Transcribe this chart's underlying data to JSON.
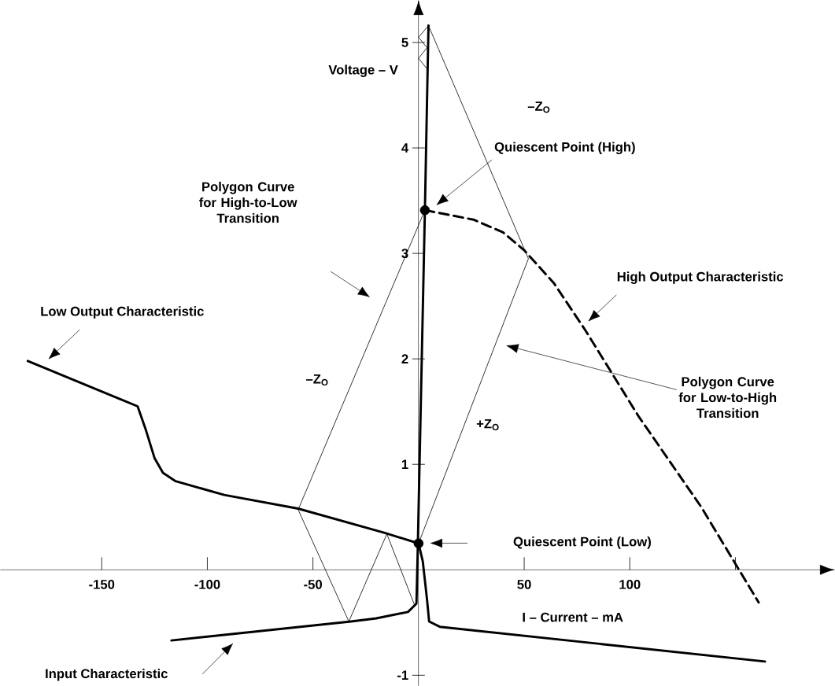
{
  "chart_data": {
    "type": "line",
    "xlabel": "I – Current – mA",
    "ylabel": "Voltage – V",
    "xlim": [
      -198,
      197
    ],
    "ylim": [
      -1.1,
      5.4
    ],
    "xticks": [
      -150,
      -100,
      -50,
      50,
      100,
      {
        "value": 150,
        "label": null
      }
    ],
    "yticks": [
      -1,
      1,
      2,
      3,
      4,
      5
    ],
    "series": [
      {
        "type": "line",
        "color": "#000000",
        "line_style": "solid",
        "x": [
          -185,
          -133,
          -129,
          -125,
          -121,
          -115,
          -92,
          -57,
          -16,
          0,
          2,
          4,
          5,
          10,
          164
        ],
        "values": [
          1.98,
          1.55,
          1.32,
          1.06,
          0.92,
          0.84,
          0.71,
          0.58,
          0.35,
          0.25,
          0.08,
          -0.28,
          -0.49,
          -0.54,
          -0.87
        ]
      },
      {
        "type": "line",
        "color": "#000000",
        "line_style": "solid",
        "x": [
          -117,
          -32,
          -20,
          -5,
          -1,
          -0.4,
          3,
          4.7
        ],
        "values": [
          -0.67,
          -0.49,
          -0.46,
          -0.4,
          -0.32,
          0.18,
          3.41,
          5.16
        ]
      },
      {
        "type": "line",
        "color": "#000000",
        "line_style": "dashed",
        "x": [
          3,
          26,
          40,
          50,
          64,
          79,
          104,
          134,
          161
        ],
        "values": [
          3.41,
          3.32,
          3.2,
          3.03,
          2.72,
          2.27,
          1.46,
          0.59,
          -0.31
        ]
      },
      {
        "type": "line",
        "color": "#000000",
        "line_style": "solid",
        "x": [
          3,
          -57,
          -33,
          -15,
          -2
        ],
        "values": [
          3.41,
          0.57,
          -0.49,
          0.34,
          -0.33
        ]
      },
      {
        "type": "line",
        "color": "#000000",
        "line_style": "solid",
        "x": [
          0,
          52,
          4.7,
          0,
          4,
          0,
          4
        ],
        "values": [
          0.25,
          2.95,
          5.16,
          5.05,
          4.95,
          4.85,
          4.75
        ]
      },
      {
        "type": "scatter",
        "color": "#000000",
        "marker": "circle",
        "x": [
          0,
          3
        ],
        "values": [
          0.25,
          3.41
        ]
      }
    ],
    "annotations": [
      "Low Output Characteristic",
      "Quiescent Point (High)",
      "Polygon Curve for High-to-Low Transition",
      "High Output Characteristic",
      "Polygon Curve for Low-to-High Transition",
      "Quiescent Point (Low)",
      "Input Characteristic",
      "–Z$_{O}$",
      "–Z$_{O}$",
      "+Z$_{O}$"
    ]
  }
}
